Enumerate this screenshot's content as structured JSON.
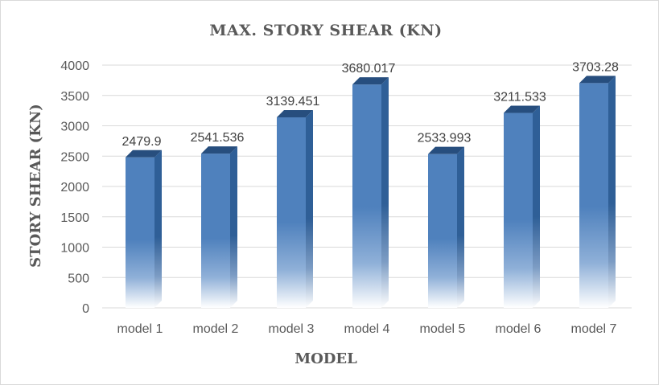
{
  "chart_data": {
    "type": "bar",
    "style": "3d-column",
    "title": "MAX. STORY SHEAR (KN)",
    "xlabel": "MODEL",
    "ylabel": "STORY SHEAR (KN)",
    "categories": [
      "model 1",
      "model 2",
      "model 3",
      "model 4",
      "model 5",
      "model 6",
      "model 7"
    ],
    "values": [
      2479.9,
      2541.536,
      3139.451,
      3680.017,
      2533.993,
      3211.533,
      3703.28
    ],
    "data_labels": [
      "2479.9",
      "2541.536",
      "3139.451",
      "3680.017",
      "2533.993",
      "3211.533",
      "3703.28"
    ],
    "ylim": [
      0,
      4000
    ],
    "yticks": [
      0,
      500,
      1000,
      1500,
      2000,
      2500,
      3000,
      3500,
      4000
    ],
    "grid": true,
    "legend": "none",
    "colors": {
      "bar_front": "#4f81bd",
      "bar_side": "#2f5f97",
      "bar_top": "#274e7e",
      "grid": "#d9d9d9",
      "text": "#595959"
    }
  }
}
